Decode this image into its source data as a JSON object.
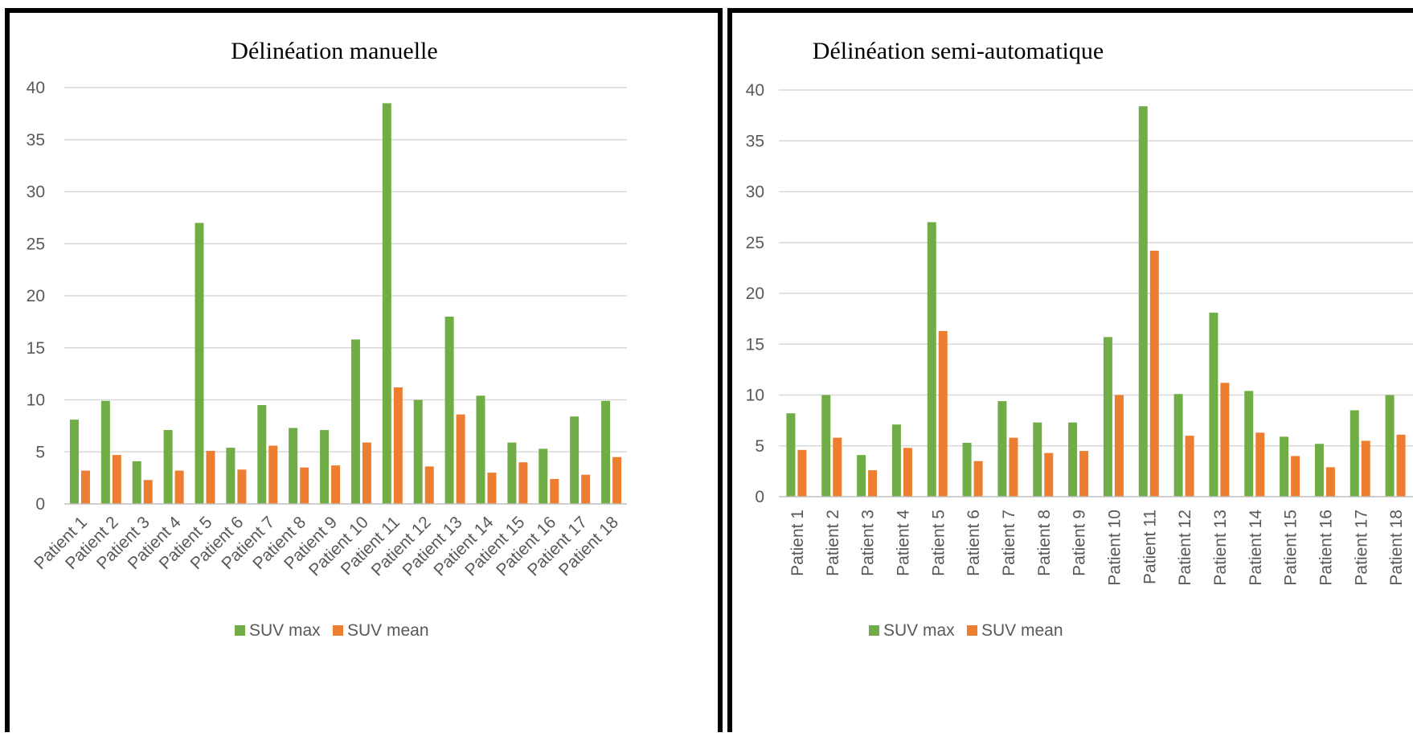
{
  "colors": {
    "suv_max": "#70ad47",
    "suv_mean": "#ed7d31"
  },
  "chart_data": [
    {
      "type": "bar",
      "title": "Délinéation manuelle",
      "xlabel": "",
      "ylabel": "",
      "ylim": [
        0,
        40
      ],
      "yticks": [
        0,
        5,
        10,
        15,
        20,
        25,
        30,
        35,
        40
      ],
      "grid": true,
      "legend": "bottom",
      "tick_rotation": -45,
      "categories": [
        "Patient 1",
        "Patient 2",
        "Patient 3",
        "Patient 4",
        "Patient 5",
        "Patient 6",
        "Patient 7",
        "Patient 8",
        "Patient 9",
        "Patient 10",
        "Patient 11",
        "Patient 12",
        "Patient 13",
        "Patient 14",
        "Patient 15",
        "Patient 16",
        "Patient 17",
        "Patient 18"
      ],
      "series": [
        {
          "name": "SUV max",
          "values": [
            8.1,
            9.9,
            4.1,
            7.1,
            27.0,
            5.4,
            9.5,
            7.3,
            7.1,
            15.8,
            38.5,
            10.0,
            18.0,
            10.4,
            5.9,
            5.3,
            8.4,
            9.9
          ]
        },
        {
          "name": "SUV  mean",
          "values": [
            3.2,
            4.7,
            2.3,
            3.2,
            5.1,
            3.3,
            5.6,
            3.5,
            3.7,
            5.9,
            11.2,
            3.6,
            8.6,
            3.0,
            4.0,
            2.4,
            2.8,
            4.5
          ]
        }
      ]
    },
    {
      "type": "bar",
      "title": "Délinéation semi-automatique",
      "xlabel": "",
      "ylabel": "",
      "ylim": [
        0,
        40
      ],
      "yticks": [
        0,
        5,
        10,
        15,
        20,
        25,
        30,
        35,
        40
      ],
      "grid": true,
      "legend": "bottom",
      "tick_rotation": -90,
      "categories": [
        "Patient 1",
        "Patient 2",
        "Patient 3",
        "Patient 4",
        "Patient 5",
        "Patient 6",
        "Patient 7",
        "Patient 8",
        "Patient 9",
        "Patient 10",
        "Patient 11",
        "Patient 12",
        "Patient 13",
        "Patient 14",
        "Patient 15",
        "Patient 16",
        "Patient 17",
        "Patient 18"
      ],
      "series": [
        {
          "name": "SUV max",
          "values": [
            8.2,
            10.0,
            4.1,
            7.1,
            27.0,
            5.3,
            9.4,
            7.3,
            7.3,
            15.7,
            38.4,
            10.1,
            18.1,
            10.4,
            5.9,
            5.2,
            8.5,
            10.0
          ]
        },
        {
          "name": "SUV  mean",
          "values": [
            4.6,
            5.8,
            2.6,
            4.8,
            16.3,
            3.5,
            5.8,
            4.3,
            4.5,
            10.0,
            24.2,
            6.0,
            11.2,
            6.3,
            4.0,
            2.9,
            5.5,
            6.1
          ]
        }
      ]
    }
  ]
}
